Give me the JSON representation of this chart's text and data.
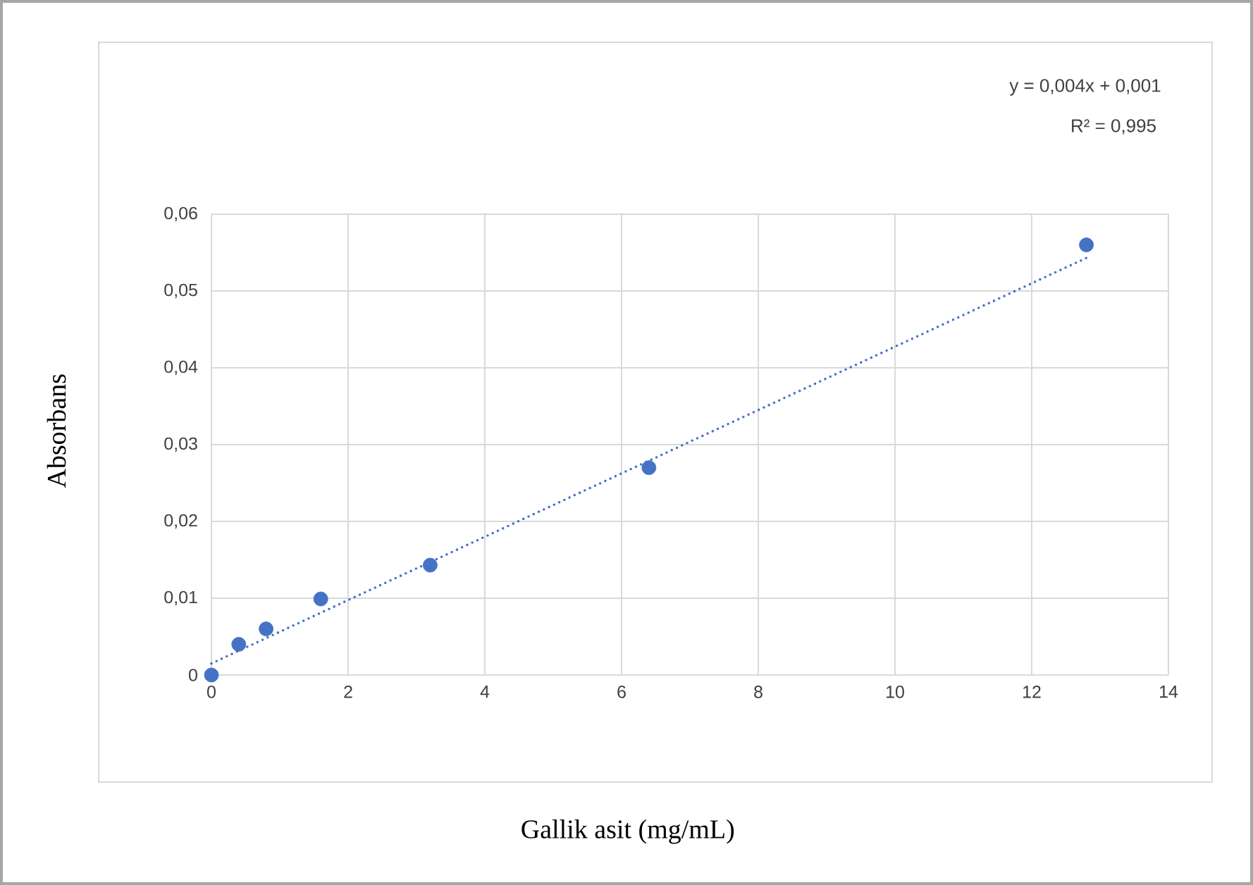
{
  "chart_data": {
    "type": "scatter",
    "xlabel": "Gallik asit (mg/mL)",
    "ylabel": "Absorbans",
    "annotations": [
      "y = 0,004x + 0,001",
      "R² = 0,995"
    ],
    "series": [
      {
        "color": "#4472c4",
        "marker": "circle",
        "x": [
          0,
          0.4,
          0.8,
          1.6,
          3.2,
          6.4,
          12.8
        ],
        "values": [
          0,
          0.004,
          0.006,
          0.0099,
          0.0143,
          0.027,
          0.056
        ]
      },
      {
        "type": "line",
        "color": "#4472c4",
        "marker": "none",
        "line_style": "dotted",
        "x": [
          0,
          12.8
        ],
        "values": [
          0.0015,
          0.0543
        ]
      }
    ],
    "xlim": [
      0,
      14
    ],
    "ylim": [
      0,
      0.06
    ],
    "xticks": [
      0,
      2,
      4,
      6,
      8,
      10,
      12,
      14
    ],
    "yticks": [
      0,
      {
        "value": 0.01,
        "label": "0,01"
      },
      {
        "value": 0.02,
        "label": "0,02"
      },
      {
        "value": 0.03,
        "label": "0,03"
      },
      {
        "value": 0.04,
        "label": "0,04"
      },
      {
        "value": 0.05,
        "label": "0,05"
      },
      {
        "value": 0.06,
        "label": "0,06"
      }
    ],
    "grid": true
  }
}
